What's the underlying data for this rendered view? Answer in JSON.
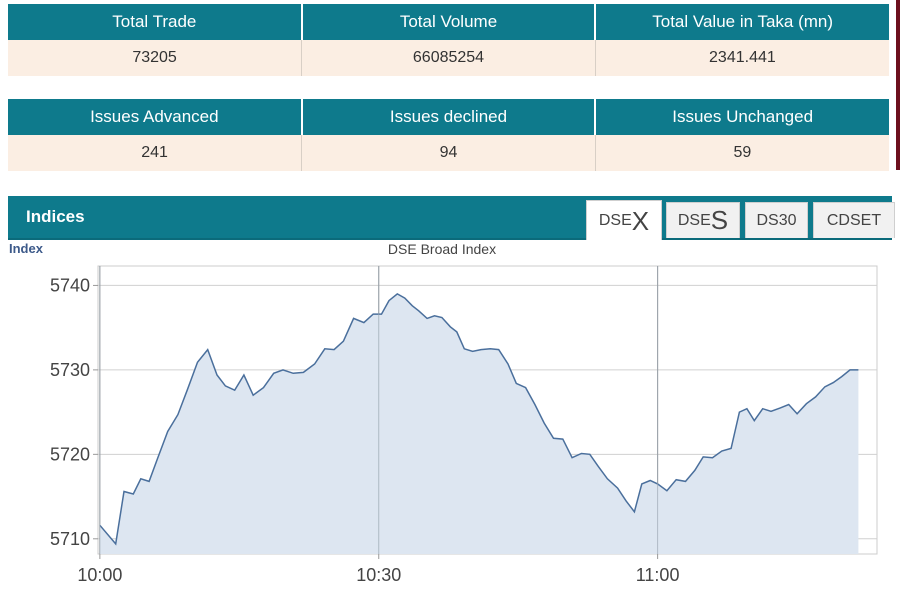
{
  "market_summary": {
    "headers": [
      "Total Trade",
      "Total Volume",
      "Total Value in Taka (mn)"
    ],
    "values": [
      "73205",
      "66085254",
      "2341.441"
    ]
  },
  "issues_summary": {
    "headers": [
      "Issues Advanced",
      "Issues declined",
      "Issues Unchanged"
    ],
    "values": [
      "241",
      "94",
      "59"
    ]
  },
  "indices_panel": {
    "title": "Indices",
    "tabs": [
      {
        "prefix": "DSE",
        "suffix": "X",
        "active": true
      },
      {
        "prefix": "DSE",
        "suffix": "S",
        "active": false
      },
      {
        "prefix": "DS30",
        "suffix": "",
        "active": false
      },
      {
        "prefix": "CDSET",
        "suffix": "",
        "active": false
      }
    ],
    "corner_label": "Index"
  },
  "colors": {
    "header_bg": "#0e7a8c",
    "cell_bg": "#fbeee3",
    "line": "#4a6f9c",
    "fill": "#dde6f1"
  },
  "chart_data": {
    "type": "area",
    "title": "DSE Broad Index",
    "ylabel": "",
    "xlabel": "",
    "ylim": [
      5708.2,
      5742.3
    ],
    "y_ticks": [
      5710,
      5720,
      5730,
      5740
    ],
    "x_ticks": [
      {
        "label": "10:00",
        "t": 0
      },
      {
        "label": "10:30",
        "t": 30
      },
      {
        "label": "11:00",
        "t": 60
      }
    ],
    "xlim": [
      -0.2,
      83.6
    ],
    "grid": true,
    "series": [
      {
        "values": [
          [
            0,
            5711.6
          ],
          [
            1.7,
            5709.4
          ],
          [
            2.6,
            5715.6
          ],
          [
            3.6,
            5715.3
          ],
          [
            4.4,
            5717.1
          ],
          [
            5.3,
            5716.8
          ],
          [
            6.2,
            5719.5
          ],
          [
            7.3,
            5722.7
          ],
          [
            8.4,
            5724.7
          ],
          [
            9.4,
            5727.6
          ],
          [
            10.5,
            5730.9
          ],
          [
            11.6,
            5732.4
          ],
          [
            12.6,
            5729.4
          ],
          [
            13.5,
            5728.1
          ],
          [
            14.5,
            5727.6
          ],
          [
            15.5,
            5729.4
          ],
          [
            16.5,
            5727.0
          ],
          [
            17.6,
            5727.9
          ],
          [
            18.7,
            5729.6
          ],
          [
            19.7,
            5730.0
          ],
          [
            20.8,
            5729.6
          ],
          [
            21.9,
            5729.7
          ],
          [
            23.1,
            5730.7
          ],
          [
            24.2,
            5732.5
          ],
          [
            25.2,
            5732.4
          ],
          [
            26.2,
            5733.4
          ],
          [
            27.3,
            5736.1
          ],
          [
            28.4,
            5735.6
          ],
          [
            29.4,
            5736.6
          ],
          [
            30.3,
            5736.6
          ],
          [
            31.1,
            5738.2
          ],
          [
            32.0,
            5739.0
          ],
          [
            32.8,
            5738.5
          ],
          [
            33.6,
            5737.6
          ],
          [
            34.3,
            5737.0
          ],
          [
            35.2,
            5736.1
          ],
          [
            36.0,
            5736.4
          ],
          [
            36.8,
            5736.2
          ],
          [
            37.7,
            5735.1
          ],
          [
            38.4,
            5734.5
          ],
          [
            39.2,
            5732.5
          ],
          [
            40.1,
            5732.2
          ],
          [
            41.0,
            5732.4
          ],
          [
            42.0,
            5732.5
          ],
          [
            42.9,
            5732.4
          ],
          [
            43.9,
            5730.7
          ],
          [
            44.8,
            5728.4
          ],
          [
            45.8,
            5727.9
          ],
          [
            46.8,
            5725.9
          ],
          [
            47.8,
            5723.7
          ],
          [
            48.8,
            5721.9
          ],
          [
            49.8,
            5721.8
          ],
          [
            50.8,
            5719.6
          ],
          [
            51.8,
            5720.1
          ],
          [
            52.7,
            5720.0
          ],
          [
            53.6,
            5718.6
          ],
          [
            54.6,
            5717.1
          ],
          [
            55.7,
            5716.0
          ],
          [
            56.6,
            5714.5
          ],
          [
            57.5,
            5713.2
          ],
          [
            58.3,
            5716.5
          ],
          [
            59.2,
            5716.9
          ],
          [
            60.0,
            5716.5
          ],
          [
            61.0,
            5715.7
          ],
          [
            62.0,
            5717.0
          ],
          [
            63.0,
            5716.8
          ],
          [
            64.0,
            5718.1
          ],
          [
            64.9,
            5719.7
          ],
          [
            65.9,
            5719.6
          ],
          [
            66.9,
            5720.4
          ],
          [
            67.9,
            5720.7
          ],
          [
            68.8,
            5725.0
          ],
          [
            69.6,
            5725.4
          ],
          [
            70.4,
            5724.0
          ],
          [
            71.3,
            5725.4
          ],
          [
            72.2,
            5725.1
          ],
          [
            73.2,
            5725.5
          ],
          [
            74.1,
            5725.9
          ],
          [
            75.0,
            5724.8
          ],
          [
            76.0,
            5726.0
          ],
          [
            77.0,
            5726.8
          ],
          [
            78.0,
            5728.0
          ],
          [
            78.9,
            5728.5
          ],
          [
            79.8,
            5729.2
          ],
          [
            80.7,
            5730.0
          ],
          [
            81.6,
            5730.0
          ]
        ]
      }
    ]
  }
}
